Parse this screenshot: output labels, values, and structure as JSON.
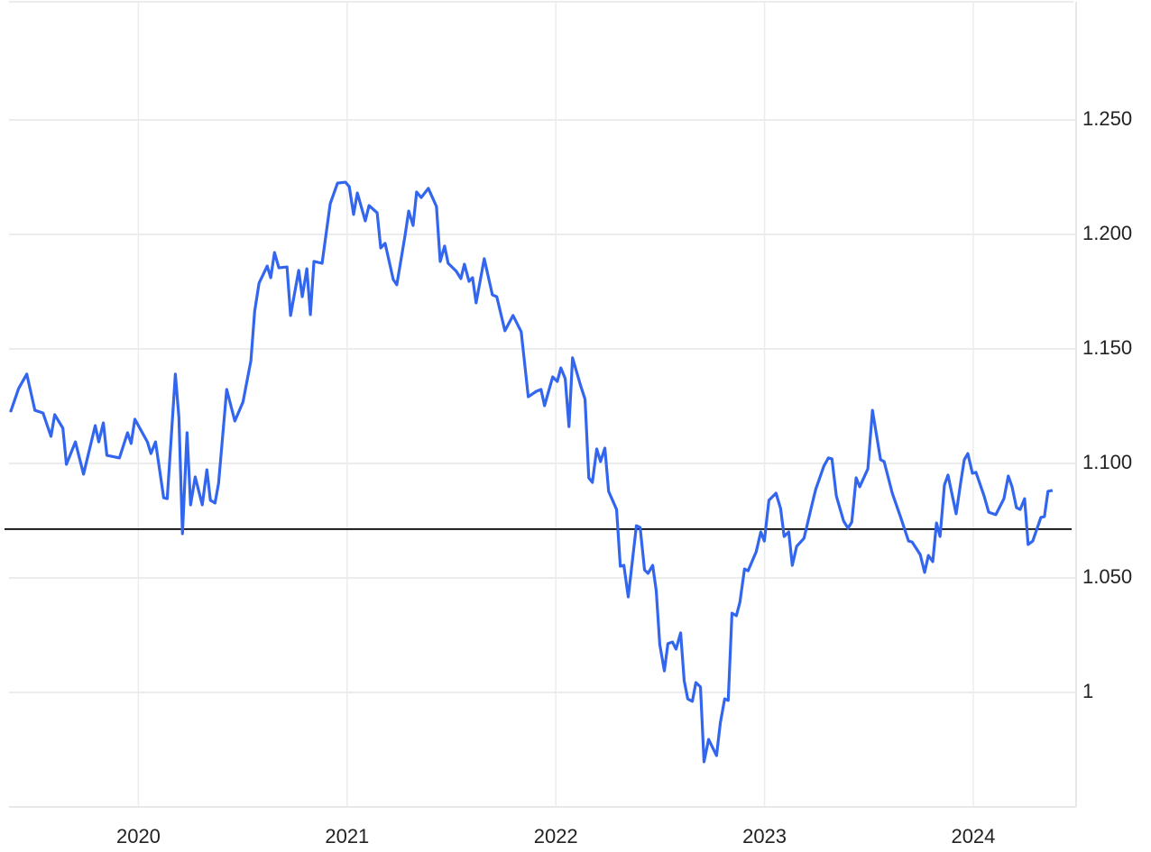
{
  "chart_data": {
    "type": "line",
    "x": [
      2019.387,
      2019.426,
      2019.465,
      2019.504,
      2019.543,
      2019.581,
      2019.599,
      2019.638,
      2019.655,
      2019.698,
      2019.737,
      2019.793,
      2019.81,
      2019.832,
      2019.849,
      2019.909,
      2019.948,
      2019.965,
      2019.983,
      2020.043,
      2020.06,
      2020.082,
      2020.121,
      2020.138,
      2020.177,
      2020.194,
      2020.211,
      2020.233,
      2020.25,
      2020.272,
      2020.306,
      2020.328,
      2020.345,
      2020.367,
      2020.384,
      2020.423,
      2020.462,
      2020.501,
      2020.539,
      2020.557,
      2020.578,
      2020.617,
      2020.634,
      2020.652,
      2020.673,
      2020.712,
      2020.729,
      2020.768,
      2020.785,
      2020.807,
      2020.824,
      2020.841,
      2020.88,
      2020.919,
      2020.954,
      2020.992,
      2021.01,
      2021.031,
      2021.049,
      2021.087,
      2021.105,
      2021.144,
      2021.161,
      2021.182,
      2021.221,
      2021.238,
      2021.277,
      2021.295,
      2021.316,
      2021.333,
      2021.355,
      2021.389,
      2021.428,
      2021.446,
      2021.467,
      2021.484,
      2021.523,
      2021.545,
      2021.562,
      2021.584,
      2021.601,
      2021.618,
      2021.657,
      2021.696,
      2021.717,
      2021.756,
      2021.795,
      2021.834,
      2021.868,
      2021.907,
      2021.929,
      2021.946,
      2021.985,
      2022.007,
      2022.024,
      2022.045,
      2022.063,
      2022.08,
      2022.119,
      2022.14,
      2022.158,
      2022.175,
      2022.196,
      2022.214,
      2022.235,
      2022.253,
      2022.291,
      2022.309,
      2022.326,
      2022.347,
      2022.386,
      2022.404,
      2022.425,
      2022.442,
      2022.464,
      2022.481,
      2022.498,
      2022.52,
      2022.537,
      2022.559,
      2022.576,
      2022.598,
      2022.615,
      2022.632,
      2022.654,
      2022.671,
      2022.693,
      2022.71,
      2022.732,
      2022.77,
      2022.788,
      2022.809,
      2022.826,
      2022.844,
      2022.865,
      2022.882,
      2022.904,
      2022.921,
      2022.96,
      2022.982,
      2022.999,
      2023.021,
      2023.055,
      2023.077,
      2023.094,
      2023.116,
      2023.133,
      2023.154,
      2023.189,
      2023.228,
      2023.245,
      2023.284,
      2023.306,
      2023.323,
      2023.344,
      2023.379,
      2023.4,
      2023.418,
      2023.439,
      2023.456,
      2023.495,
      2023.517,
      2023.556,
      2023.573,
      2023.612,
      2023.651,
      2023.69,
      2023.707,
      2023.746,
      2023.767,
      2023.785,
      2023.806,
      2023.824,
      2023.841,
      2023.862,
      2023.879,
      2023.918,
      2023.94,
      2023.957,
      2023.974,
      2023.996,
      2024.013,
      2024.052,
      2024.074,
      2024.108,
      2024.147,
      2024.168,
      2024.186,
      2024.207,
      2024.225,
      2024.246,
      2024.263,
      2024.285,
      2024.324,
      2024.341,
      2024.358,
      2024.38
    ],
    "series": [
      {
        "color": "#3366ee",
        "values": [
          1.1224,
          1.1327,
          1.139,
          1.1232,
          1.122,
          1.1118,
          1.1213,
          1.1154,
          1.0996,
          1.1094,
          1.0953,
          1.1165,
          1.1094,
          1.1177,
          1.1035,
          1.1024,
          1.1134,
          1.1087,
          1.1193,
          1.1094,
          1.1043,
          1.1094,
          1.085,
          1.0846,
          1.139,
          1.1201,
          1.0693,
          1.1134,
          1.0819,
          1.0941,
          1.0819,
          1.0972,
          1.0839,
          1.0827,
          1.0913,
          1.1323,
          1.1185,
          1.1268,
          1.1449,
          1.1665,
          1.1787,
          1.1862,
          1.1811,
          1.1921,
          1.1854,
          1.1858,
          1.1646,
          1.1843,
          1.1728,
          1.185,
          1.165,
          1.1882,
          1.1874,
          1.2134,
          1.2224,
          1.2228,
          1.2209,
          1.2087,
          1.2181,
          1.2059,
          1.2126,
          1.2094,
          1.1941,
          1.1961,
          1.1803,
          1.178,
          1.1992,
          1.2102,
          1.2039,
          1.2185,
          1.2161,
          1.2201,
          1.2122,
          1.1882,
          1.1949,
          1.1874,
          1.1839,
          1.1807,
          1.187,
          1.1795,
          1.1811,
          1.1701,
          1.1894,
          1.1736,
          1.1728,
          1.1579,
          1.1646,
          1.1575,
          1.1291,
          1.1315,
          1.1323,
          1.1252,
          1.1378,
          1.1358,
          1.1417,
          1.137,
          1.1161,
          1.1461,
          1.1339,
          1.128,
          1.0937,
          1.0917,
          1.1063,
          1.1008,
          1.1067,
          1.0878,
          1.0799,
          1.0551,
          1.0555,
          1.0417,
          1.0728,
          1.072,
          1.0535,
          1.052,
          1.0555,
          1.0445,
          1.0209,
          1.0094,
          1.0213,
          1.022,
          1.0189,
          1.026,
          1.0051,
          0.9972,
          0.9961,
          1.0043,
          1.0024,
          0.9697,
          0.9795,
          0.9724,
          0.9866,
          0.9972,
          0.9965,
          1.0346,
          1.0335,
          1.0394,
          1.0539,
          1.0531,
          1.0614,
          1.0701,
          1.0661,
          1.0839,
          1.087,
          1.0803,
          1.0681,
          1.0701,
          1.0555,
          1.0638,
          1.0673,
          1.0823,
          1.0886,
          1.0988,
          1.1024,
          1.102,
          1.0858,
          1.0748,
          1.0717,
          1.0744,
          1.0937,
          1.0898,
          1.0976,
          1.1232,
          1.1016,
          1.1008,
          1.087,
          1.0768,
          1.0661,
          1.0657,
          1.0602,
          1.0524,
          1.0598,
          1.0571,
          1.074,
          1.0681,
          1.0906,
          1.0949,
          1.078,
          1.0917,
          1.1016,
          1.1043,
          1.0957,
          1.0961,
          1.0858,
          1.0787,
          1.0776,
          1.0846,
          1.0945,
          1.0898,
          1.0807,
          1.0799,
          1.0846,
          1.0646,
          1.0661,
          1.0764,
          1.0768,
          1.0878,
          1.0882
        ]
      }
    ],
    "reference_line": {
      "value": 1.0713,
      "color": "#000000"
    },
    "xlim": [
      2019.38,
      2024.48
    ],
    "xticks": [
      2020,
      2021,
      2022,
      2023,
      2024
    ],
    "ylim": [
      0.95,
      1.3
    ],
    "yticks": [
      1,
      {
        "value": 1.05,
        "label": "1.050"
      },
      {
        "value": 1.1,
        "label": "1.100"
      },
      {
        "value": 1.15,
        "label": "1.150"
      },
      {
        "value": 1.2,
        "label": "1.200"
      },
      {
        "value": 1.25,
        "label": "1.250"
      }
    ],
    "grid": true,
    "y_axis_side": "right"
  }
}
